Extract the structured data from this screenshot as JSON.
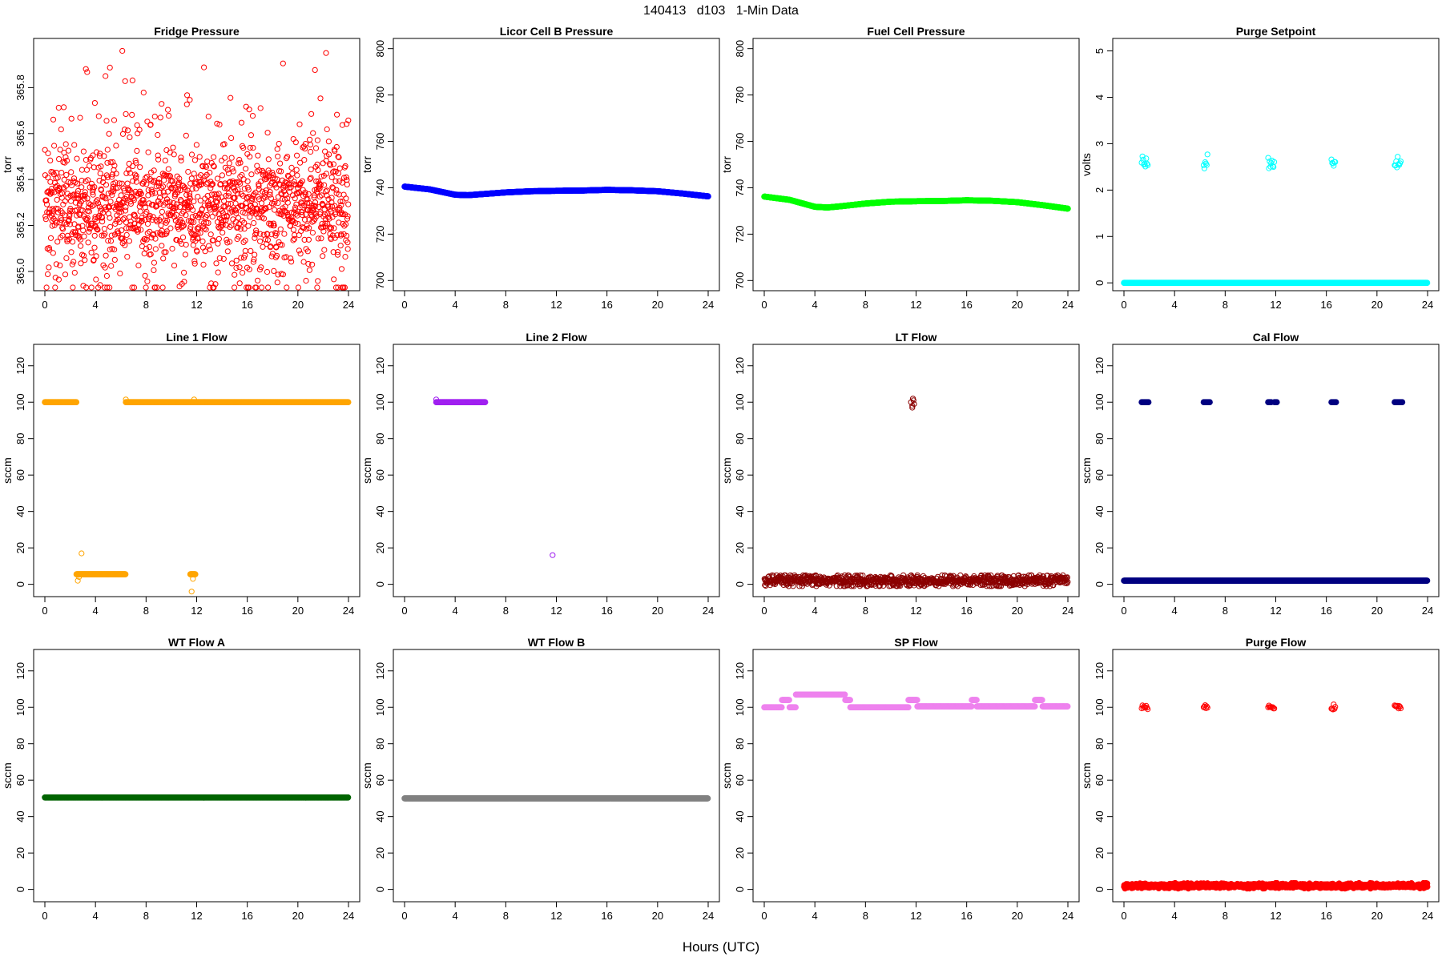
{
  "header": {
    "title": "140413   d103   1-Min Data",
    "xlabel": "Hours (UTC)"
  },
  "chart_data": [
    {
      "type": "scatter",
      "title": "Fridge Pressure",
      "ylabel": "torr",
      "color": "#ff0000",
      "marker": "open-circle",
      "xlim": [
        0,
        24
      ],
      "ylim": [
        364.93,
        366.0
      ],
      "xticks": [
        0,
        4,
        8,
        12,
        16,
        20,
        24
      ],
      "yticks": [
        365.0,
        365.2,
        365.4,
        365.6,
        365.8
      ],
      "ytick_labels": [
        "365.0",
        "365.2",
        "365.4",
        "365.6",
        "365.8"
      ],
      "series": [
        {
          "pattern": "noise",
          "center": 365.28,
          "spread": 0.1,
          "outlier_spread": 0.26,
          "min": 364.93,
          "max": 365.96,
          "n": 1440
        }
      ]
    },
    {
      "type": "scatter",
      "title": "Licor Cell B Pressure",
      "ylabel": "torr",
      "color": "#0000ff",
      "marker": "filled-circle",
      "xlim": [
        0,
        24
      ],
      "ylim": [
        697,
        803
      ],
      "xticks": [
        0,
        4,
        8,
        12,
        16,
        20,
        24
      ],
      "yticks": [
        700,
        720,
        740,
        760,
        780,
        800
      ],
      "ytick_labels": [
        "700",
        "720",
        "740",
        "760",
        "780",
        "800"
      ],
      "series": [
        {
          "pattern": "curve",
          "x": [
            0,
            2,
            4,
            5,
            6,
            8,
            10,
            12,
            14,
            16,
            18,
            20,
            22,
            24
          ],
          "y": [
            740.5,
            739.3,
            737.0,
            736.8,
            737.2,
            738.0,
            738.5,
            738.7,
            738.8,
            739.1,
            738.9,
            738.5,
            737.5,
            736.3
          ]
        }
      ]
    },
    {
      "type": "scatter",
      "title": "Fuel Cell Pressure",
      "ylabel": "torr",
      "color": "#00ff00",
      "marker": "filled-circle",
      "xlim": [
        0,
        24
      ],
      "ylim": [
        697,
        803
      ],
      "xticks": [
        0,
        4,
        8,
        12,
        16,
        20,
        24
      ],
      "yticks": [
        700,
        720,
        740,
        760,
        780,
        800
      ],
      "ytick_labels": [
        "700",
        "720",
        "740",
        "760",
        "780",
        "800"
      ],
      "series": [
        {
          "pattern": "curve",
          "x": [
            0,
            2,
            4,
            5,
            6,
            8,
            10,
            12,
            14,
            16,
            18,
            20,
            22,
            24
          ],
          "y": [
            736.2,
            734.8,
            731.8,
            731.5,
            732.0,
            733.2,
            734.0,
            734.2,
            734.3,
            734.6,
            734.4,
            733.8,
            732.5,
            731.0
          ]
        }
      ]
    },
    {
      "type": "scatter",
      "title": "Purge Setpoint",
      "ylabel": "volts",
      "color": "#00ffff",
      "marker": "filled-circle",
      "xlim": [
        0,
        24
      ],
      "ylim": [
        -0.1,
        5.2
      ],
      "xticks": [
        0,
        4,
        8,
        12,
        16,
        20,
        24
      ],
      "yticks": [
        0,
        1,
        2,
        3,
        4,
        5
      ],
      "ytick_labels": [
        "0",
        "1",
        "2",
        "3",
        "4",
        "5"
      ],
      "series": [
        {
          "pattern": "constant",
          "start": 0,
          "end": 24,
          "value": 0
        },
        {
          "pattern": "bursts",
          "value": 2.6,
          "spread": 0.08,
          "marker": "open-circle",
          "windows": [
            [
              1.4,
              1.9
            ],
            [
              6.3,
              6.6
            ],
            [
              11.4,
              11.9
            ],
            [
              16.4,
              16.7
            ],
            [
              21.4,
              21.9
            ]
          ]
        }
      ]
    },
    {
      "type": "scatter",
      "title": "Line 1 Flow",
      "ylabel": "sccm",
      "color": "#ffa500",
      "marker": "filled-circle",
      "xlim": [
        0,
        24
      ],
      "ylim": [
        -5,
        130
      ],
      "xticks": [
        0,
        4,
        8,
        12,
        16,
        20,
        24
      ],
      "yticks": [
        0,
        20,
        40,
        60,
        80,
        100,
        120
      ],
      "ytick_labels": [
        "0",
        "20",
        "40",
        "60",
        "80",
        "100",
        "120"
      ],
      "series": [
        {
          "pattern": "constant",
          "start": 0,
          "end": 2.5,
          "value": 100
        },
        {
          "pattern": "constant",
          "start": 6.4,
          "end": 24,
          "value": 100
        },
        {
          "pattern": "constant",
          "start": 2.5,
          "end": 6.4,
          "value": 5.5
        },
        {
          "pattern": "constant",
          "start": 11.5,
          "end": 11.9,
          "value": 5.5
        },
        {
          "pattern": "points",
          "marker": "open-circle",
          "x": [
            2.6,
            2.7,
            2.9,
            6.4,
            11.6,
            11.7,
            11.8
          ],
          "y": [
            2,
            4,
            17,
            101.5,
            -4,
            3,
            101.5
          ]
        }
      ]
    },
    {
      "type": "scatter",
      "title": "Line 2 Flow",
      "ylabel": "sccm",
      "color": "#a020f0",
      "marker": "filled-circle",
      "xlim": [
        0,
        24
      ],
      "ylim": [
        -5,
        130
      ],
      "xticks": [
        0,
        4,
        8,
        12,
        16,
        20,
        24
      ],
      "yticks": [
        0,
        20,
        40,
        60,
        80,
        100,
        120
      ],
      "ytick_labels": [
        "0",
        "20",
        "40",
        "60",
        "80",
        "100",
        "120"
      ],
      "series": [
        {
          "pattern": "constant",
          "start": 2.5,
          "end": 6.4,
          "value": 100
        },
        {
          "pattern": "points",
          "marker": "open-circle",
          "x": [
            2.5,
            11.7
          ],
          "y": [
            101.5,
            16
          ]
        }
      ]
    },
    {
      "type": "scatter",
      "title": "LT Flow",
      "ylabel": "sccm",
      "color": "#8b0000",
      "marker": "open-circle",
      "xlim": [
        0,
        24
      ],
      "ylim": [
        -5,
        130
      ],
      "xticks": [
        0,
        4,
        8,
        12,
        16,
        20,
        24
      ],
      "yticks": [
        0,
        20,
        40,
        60,
        80,
        100,
        120
      ],
      "ytick_labels": [
        "0",
        "20",
        "40",
        "60",
        "80",
        "100",
        "120"
      ],
      "series": [
        {
          "pattern": "noise",
          "center": 2,
          "spread": 1.6,
          "min": -1,
          "max": 5,
          "n": 900
        },
        {
          "pattern": "points",
          "x": [
            11.6,
            11.7,
            11.8,
            11.75,
            11.85,
            11.7
          ],
          "y": [
            100,
            98,
            101,
            102,
            99,
            97
          ]
        }
      ]
    },
    {
      "type": "scatter",
      "title": "Cal Flow",
      "ylabel": "sccm",
      "color": "#000080",
      "marker": "filled-circle",
      "xlim": [
        0,
        24
      ],
      "ylim": [
        -5,
        130
      ],
      "xticks": [
        0,
        4,
        8,
        12,
        16,
        20,
        24
      ],
      "yticks": [
        0,
        20,
        40,
        60,
        80,
        100,
        120
      ],
      "ytick_labels": [
        "0",
        "20",
        "40",
        "60",
        "80",
        "100",
        "120"
      ],
      "series": [
        {
          "pattern": "constant",
          "start": 0,
          "end": 24,
          "value": 2
        },
        {
          "pattern": "bursts",
          "value": 100,
          "spread": 0,
          "windows": [
            [
              1.4,
              2.0
            ],
            [
              6.3,
              6.8
            ],
            [
              11.4,
              11.7
            ],
            [
              11.9,
              12.1
            ],
            [
              16.4,
              16.8
            ],
            [
              21.4,
              22.0
            ]
          ]
        }
      ]
    },
    {
      "type": "scatter",
      "title": "WT Flow A",
      "ylabel": "sccm",
      "color": "#006400",
      "marker": "filled-circle",
      "xlim": [
        0,
        24
      ],
      "ylim": [
        -5,
        130
      ],
      "xticks": [
        0,
        4,
        8,
        12,
        16,
        20,
        24
      ],
      "yticks": [
        0,
        20,
        40,
        60,
        80,
        100,
        120
      ],
      "ytick_labels": [
        "0",
        "20",
        "40",
        "60",
        "80",
        "100",
        "120"
      ],
      "series": [
        {
          "pattern": "constant",
          "start": 0,
          "end": 24,
          "value": 50.5
        }
      ]
    },
    {
      "type": "scatter",
      "title": "WT Flow B",
      "ylabel": "sccm",
      "color": "#808080",
      "marker": "filled-circle",
      "xlim": [
        0,
        24
      ],
      "ylim": [
        -5,
        130
      ],
      "xticks": [
        0,
        4,
        8,
        12,
        16,
        20,
        24
      ],
      "yticks": [
        0,
        20,
        40,
        60,
        80,
        100,
        120
      ],
      "ytick_labels": [
        "0",
        "20",
        "40",
        "60",
        "80",
        "100",
        "120"
      ],
      "series": [
        {
          "pattern": "constant",
          "start": 0,
          "end": 24,
          "value": 50
        }
      ]
    },
    {
      "type": "scatter",
      "title": "SP Flow",
      "ylabel": "sccm",
      "color": "#ee82ee",
      "marker": "filled-circle",
      "xlim": [
        0,
        24
      ],
      "ylim": [
        -5,
        130
      ],
      "xticks": [
        0,
        4,
        8,
        12,
        16,
        20,
        24
      ],
      "yticks": [
        0,
        20,
        40,
        60,
        80,
        100,
        120
      ],
      "ytick_labels": [
        "0",
        "20",
        "40",
        "60",
        "80",
        "100",
        "120"
      ],
      "series": [
        {
          "pattern": "steps",
          "segments": [
            [
              0,
              1.4,
              100
            ],
            [
              1.4,
              2.0,
              104
            ],
            [
              2.0,
              2.5,
              100
            ],
            [
              2.5,
              6.4,
              107
            ],
            [
              6.4,
              6.8,
              104
            ],
            [
              6.8,
              11.4,
              100
            ],
            [
              11.4,
              12.1,
              104
            ],
            [
              12.1,
              16.4,
              100.5
            ],
            [
              16.4,
              16.8,
              104
            ],
            [
              16.8,
              21.4,
              100.5
            ],
            [
              21.4,
              22.0,
              104
            ],
            [
              22.0,
              24,
              100.5
            ]
          ]
        }
      ]
    },
    {
      "type": "scatter",
      "title": "Purge Flow",
      "ylabel": "sccm",
      "color": "#ff0000",
      "marker": "filled-circle",
      "xlim": [
        0,
        24
      ],
      "ylim": [
        -5,
        130
      ],
      "xticks": [
        0,
        4,
        8,
        12,
        16,
        20,
        24
      ],
      "yticks": [
        0,
        20,
        40,
        60,
        80,
        100,
        120
      ],
      "ytick_labels": [
        "0",
        "20",
        "40",
        "60",
        "80",
        "100",
        "120"
      ],
      "series": [
        {
          "pattern": "noise",
          "center": 2,
          "spread": 0.6,
          "min": 0.5,
          "max": 3.5,
          "n": 1200
        },
        {
          "pattern": "bursts",
          "value": 100,
          "spread": 0.5,
          "marker": "open-circle",
          "windows": [
            [
              1.4,
              1.9
            ],
            [
              6.3,
              6.6
            ],
            [
              11.4,
              11.9
            ],
            [
              16.4,
              16.7
            ],
            [
              21.4,
              21.9
            ]
          ]
        }
      ]
    }
  ]
}
